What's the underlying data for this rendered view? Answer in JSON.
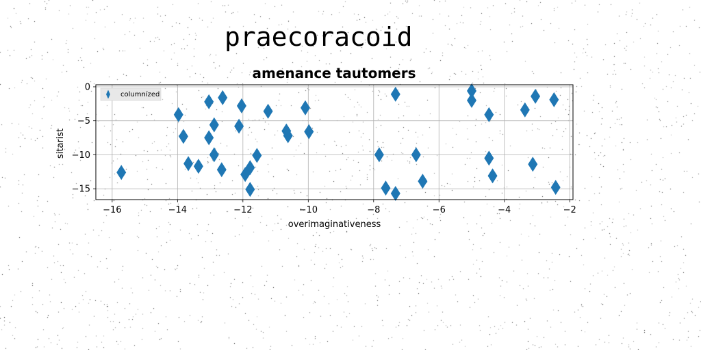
{
  "suptitle": "praecoracoid",
  "chart_data": {
    "type": "scatter",
    "title": "amenance tautomers",
    "xlabel": "overimaginativeness",
    "ylabel": "sitarist",
    "xlim": [
      -16.5,
      -1.9
    ],
    "ylim": [
      -16.6,
      0.3
    ],
    "xticks": [
      -16,
      -14,
      -12,
      -10,
      -8,
      -6,
      -4,
      -2
    ],
    "yticks": [
      0,
      -5,
      -10,
      -15
    ],
    "xtick_labels": [
      "−16",
      "−14",
      "−12",
      "−10",
      "−8",
      "−6",
      "−4",
      "−2"
    ],
    "ytick_labels": [
      "0",
      "−5",
      "−10",
      "−15"
    ],
    "grid": true,
    "legend_position": "top-left",
    "marker": "thin-diamond",
    "color": "#1f77b4",
    "series": [
      {
        "name": "columnízed",
        "points": [
          {
            "x": -15.72,
            "y": -12.6
          },
          {
            "x": -13.97,
            "y": -4.1
          },
          {
            "x": -13.82,
            "y": -7.3
          },
          {
            "x": -13.67,
            "y": -11.3
          },
          {
            "x": -13.36,
            "y": -11.7
          },
          {
            "x": -13.04,
            "y": -2.2
          },
          {
            "x": -13.04,
            "y": -7.5
          },
          {
            "x": -12.88,
            "y": -5.6
          },
          {
            "x": -12.88,
            "y": -10.0
          },
          {
            "x": -12.62,
            "y": -1.6
          },
          {
            "x": -12.65,
            "y": -12.2
          },
          {
            "x": -12.12,
            "y": -5.8
          },
          {
            "x": -12.04,
            "y": -2.8
          },
          {
            "x": -11.93,
            "y": -12.9
          },
          {
            "x": -11.78,
            "y": -11.9
          },
          {
            "x": -11.78,
            "y": -15.1
          },
          {
            "x": -11.57,
            "y": -10.1
          },
          {
            "x": -11.23,
            "y": -3.6
          },
          {
            "x": -10.67,
            "y": -6.5
          },
          {
            "x": -10.62,
            "y": -7.2
          },
          {
            "x": -10.09,
            "y": -3.1
          },
          {
            "x": -9.98,
            "y": -6.6
          },
          {
            "x": -7.83,
            "y": -10.0
          },
          {
            "x": -7.63,
            "y": -14.9
          },
          {
            "x": -7.33,
            "y": -1.1
          },
          {
            "x": -7.33,
            "y": -15.7
          },
          {
            "x": -6.7,
            "y": -10.0
          },
          {
            "x": -6.5,
            "y": -13.9
          },
          {
            "x": -5.0,
            "y": -0.6
          },
          {
            "x": -5.0,
            "y": -2.0
          },
          {
            "x": -4.47,
            "y": -4.1
          },
          {
            "x": -4.47,
            "y": -10.5
          },
          {
            "x": -4.36,
            "y": -13.1
          },
          {
            "x": -3.37,
            "y": -3.4
          },
          {
            "x": -3.13,
            "y": -11.4
          },
          {
            "x": -3.05,
            "y": -1.4
          },
          {
            "x": -2.48,
            "y": -1.9
          },
          {
            "x": -2.43,
            "y": -14.8
          }
        ]
      }
    ]
  }
}
